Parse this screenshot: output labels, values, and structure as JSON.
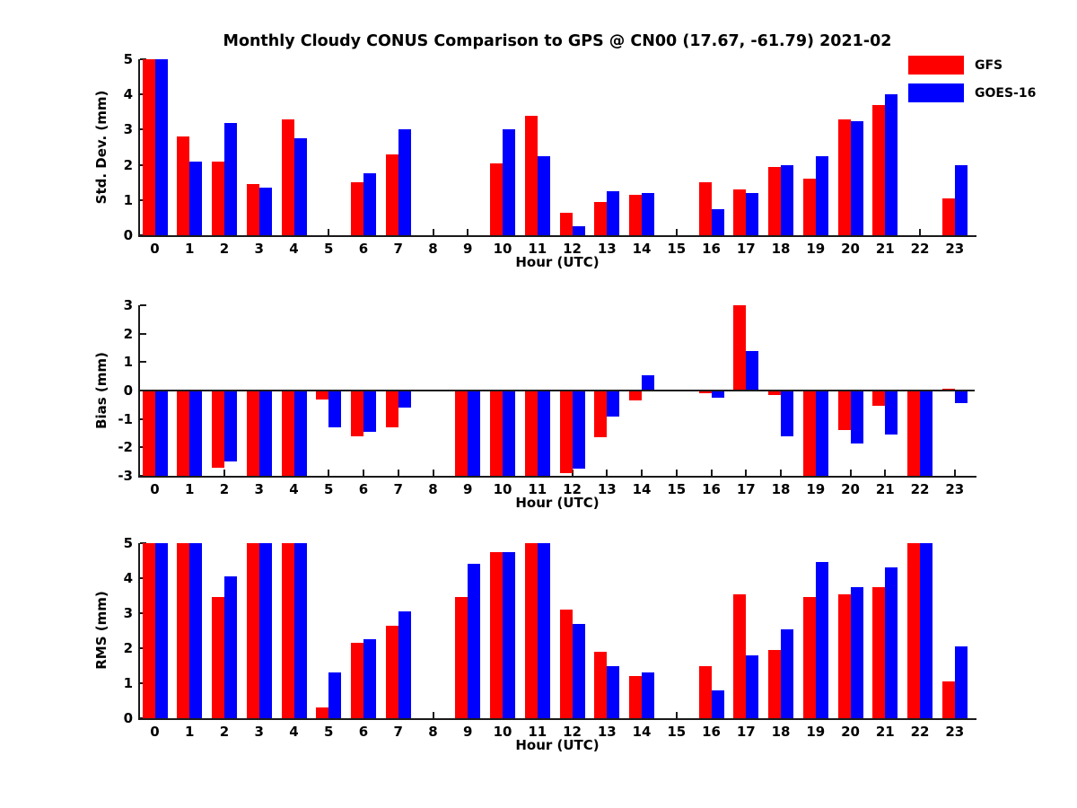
{
  "figure": {
    "title": "Monthly Cloudy CONUS Comparison to GPS @ CN00 (17.67, -61.79) 2021-02",
    "background": "#ffffff"
  },
  "colors": {
    "gfs": "#ff0000",
    "goes16": "#0000ff",
    "axis": "#1a1a1a",
    "text": "#000000"
  },
  "legend": {
    "position": "top-right",
    "items": [
      {
        "label": "GFS",
        "color": "#ff0000"
      },
      {
        "label": "GOES-16",
        "color": "#0000ff"
      }
    ]
  },
  "chart_data": [
    {
      "type": "bar",
      "title": "",
      "ylabel": "Std. Dev. (mm)",
      "xlabel": "Hour (UTC)",
      "ylim": [
        0,
        5
      ],
      "yticks": [
        0,
        1,
        2,
        3,
        4,
        5
      ],
      "grid": false,
      "categories": [
        "0",
        "1",
        "2",
        "3",
        "4",
        "5",
        "6",
        "7",
        "8",
        "9",
        "10",
        "11",
        "12",
        "13",
        "14",
        "15",
        "16",
        "17",
        "18",
        "19",
        "20",
        "21",
        "22",
        "23"
      ],
      "series": [
        {
          "name": "GFS",
          "color": "#ff0000",
          "values": [
            5.0,
            2.8,
            2.1,
            1.45,
            3.3,
            null,
            1.5,
            2.3,
            null,
            null,
            2.05,
            3.4,
            0.65,
            0.95,
            1.15,
            null,
            1.5,
            1.3,
            1.95,
            1.6,
            3.3,
            3.7,
            null,
            1.05
          ]
        },
        {
          "name": "GOES-16",
          "color": "#0000ff",
          "values": [
            5.0,
            2.1,
            3.2,
            1.35,
            2.75,
            null,
            1.75,
            3.0,
            null,
            null,
            3.0,
            2.25,
            0.25,
            1.25,
            1.2,
            null,
            0.75,
            1.2,
            2.0,
            2.25,
            3.25,
            4.0,
            null,
            2.0
          ]
        }
      ]
    },
    {
      "type": "bar",
      "title": "",
      "ylabel": "Bias (mm)",
      "xlabel": "Hour (UTC)",
      "ylim": [
        -3,
        3
      ],
      "yticks": [
        -3,
        -2,
        -1,
        0,
        1,
        2,
        3
      ],
      "grid": false,
      "zero_line": true,
      "categories": [
        "0",
        "1",
        "2",
        "3",
        "4",
        "5",
        "6",
        "7",
        "8",
        "9",
        "10",
        "11",
        "12",
        "13",
        "14",
        "15",
        "16",
        "17",
        "18",
        "19",
        "20",
        "21",
        "22",
        "23"
      ],
      "series": [
        {
          "name": "GFS",
          "color": "#ff0000",
          "values": [
            -3.0,
            -3.0,
            -2.7,
            -3.0,
            -3.0,
            -0.3,
            -1.6,
            -1.3,
            null,
            -3.0,
            -3.0,
            -3.0,
            -2.9,
            -1.65,
            -0.35,
            null,
            -0.1,
            3.0,
            -0.15,
            -3.0,
            -1.4,
            -0.55,
            -3.0,
            0.07
          ]
        },
        {
          "name": "GOES-16",
          "color": "#0000ff",
          "values": [
            -3.0,
            -3.0,
            -2.5,
            -3.0,
            -3.0,
            -1.3,
            -1.45,
            -0.6,
            null,
            -3.0,
            -3.0,
            -3.0,
            -2.75,
            -0.9,
            0.55,
            null,
            -0.25,
            1.4,
            -1.6,
            -3.0,
            -1.85,
            -1.55,
            -3.0,
            -0.45
          ]
        }
      ]
    },
    {
      "type": "bar",
      "title": "",
      "ylabel": "RMS (mm)",
      "xlabel": "Hour (UTC)",
      "ylim": [
        0,
        5
      ],
      "yticks": [
        0,
        1,
        2,
        3,
        4,
        5
      ],
      "grid": false,
      "categories": [
        "0",
        "1",
        "2",
        "3",
        "4",
        "5",
        "6",
        "7",
        "8",
        "9",
        "10",
        "11",
        "12",
        "13",
        "14",
        "15",
        "16",
        "17",
        "18",
        "19",
        "20",
        "21",
        "22",
        "23"
      ],
      "series": [
        {
          "name": "GFS",
          "color": "#ff0000",
          "values": [
            5.0,
            5.0,
            3.45,
            5.0,
            5.0,
            0.3,
            2.15,
            2.65,
            null,
            3.45,
            4.75,
            5.0,
            3.1,
            1.9,
            1.2,
            null,
            1.5,
            3.55,
            1.95,
            3.45,
            3.55,
            3.75,
            5.0,
            1.05
          ]
        },
        {
          "name": "GOES-16",
          "color": "#0000ff",
          "values": [
            5.0,
            5.0,
            4.05,
            5.0,
            5.0,
            1.3,
            2.25,
            3.05,
            null,
            4.4,
            4.75,
            5.0,
            2.7,
            1.5,
            1.3,
            null,
            0.8,
            1.8,
            2.55,
            4.45,
            3.75,
            4.3,
            5.0,
            2.05
          ]
        }
      ]
    }
  ]
}
